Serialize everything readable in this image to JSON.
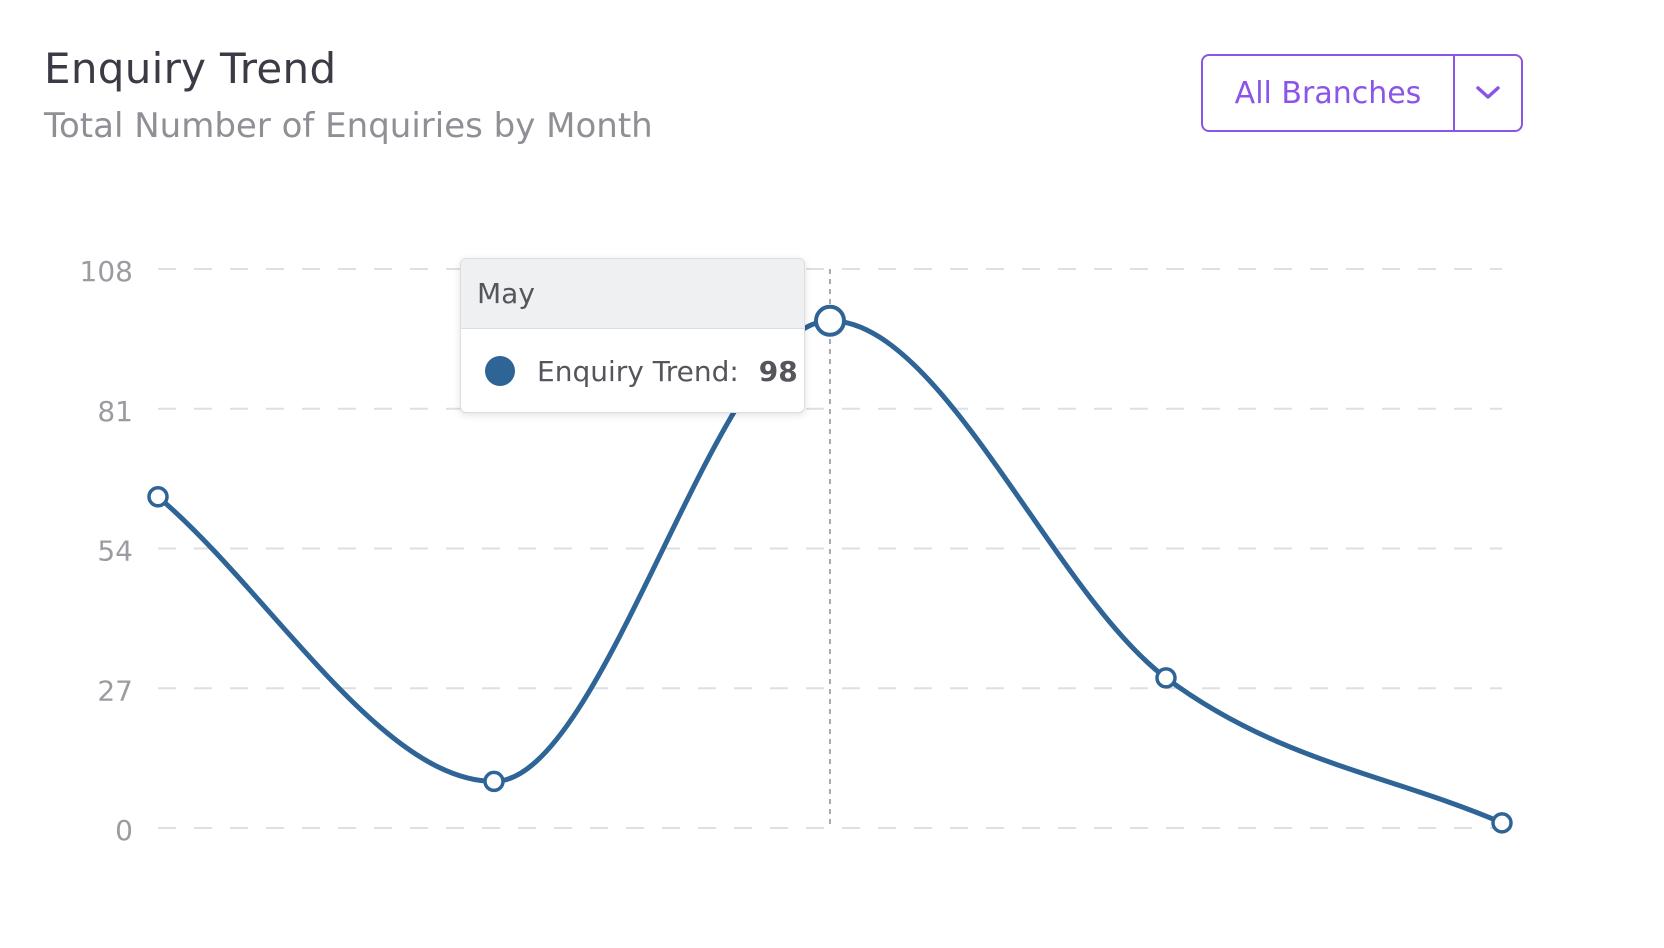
{
  "header": {
    "title": "Enquiry Trend",
    "subtitle": "Total Number of Enquiries by Month"
  },
  "branch_filter": {
    "selected": "All Branches",
    "icon": "chevron-down-icon",
    "accent_color": "#8a55e8"
  },
  "tooltip": {
    "category": "May",
    "series_label": "Enquiry Trend:",
    "value": "98",
    "color": "#2e6496"
  },
  "chart_data": {
    "type": "line",
    "title": "Enquiry Trend",
    "subtitle": "Total Number of Enquiries by Month",
    "series": [
      {
        "name": "Enquiry Trend",
        "color": "#2e6496",
        "values": [
          64,
          9,
          98,
          29,
          1
        ]
      }
    ],
    "hovered_index": 2,
    "yticks": [
      0,
      27,
      54,
      81,
      108
    ],
    "ylim": [
      0,
      108
    ],
    "grid": true,
    "smooth": true
  }
}
